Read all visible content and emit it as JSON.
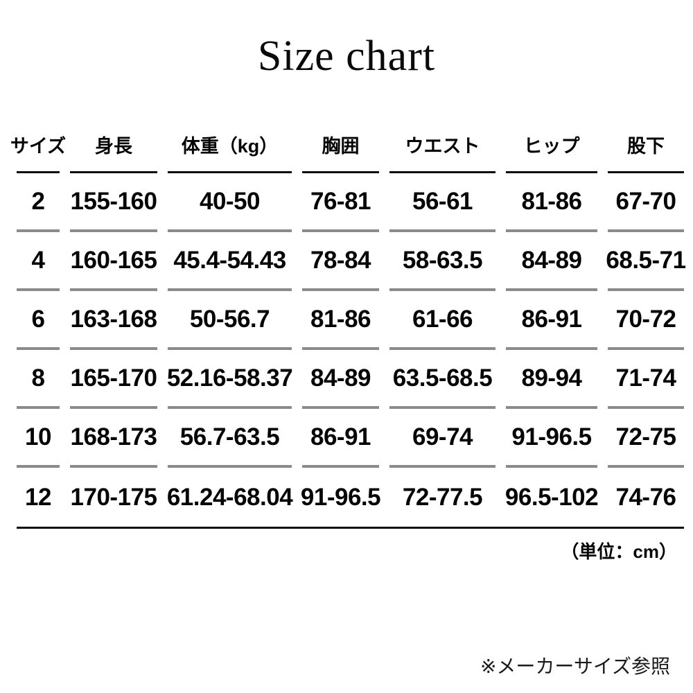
{
  "chart_data": {
    "type": "table",
    "title": "Size chart",
    "columns": [
      "サイズ",
      "身長",
      "体重（kg）",
      "胸囲",
      "ウエスト",
      "ヒップ",
      "股下"
    ],
    "rows": [
      [
        "2",
        "155-160",
        "40-50",
        "76-81",
        "56-61",
        "81-86",
        "67-70"
      ],
      [
        "4",
        "160-165",
        "45.4-54.43",
        "78-84",
        "58-63.5",
        "84-89",
        "68.5-71"
      ],
      [
        "6",
        "163-168",
        "50-56.7",
        "81-86",
        "61-66",
        "86-91",
        "70-72"
      ],
      [
        "8",
        "165-170",
        "52.16-58.37",
        "84-89",
        "63.5-68.5",
        "89-94",
        "71-74"
      ],
      [
        "10",
        "168-173",
        "56.7-63.5",
        "86-91",
        "69-74",
        "91-96.5",
        "72-75"
      ],
      [
        "12",
        "170-175",
        "61.24-68.04",
        "91-96.5",
        "72-77.5",
        "96.5-102",
        "74-76"
      ]
    ],
    "unit_note": "（単位：cm）",
    "footer_note": "※メーカーサイズ参照"
  },
  "colors": {
    "background": "#ffffff",
    "text": "#050505",
    "header_rule": "#0a0a0a",
    "row_rule": "#8a8a8a",
    "bottom_rule": "#0a0a0a"
  }
}
